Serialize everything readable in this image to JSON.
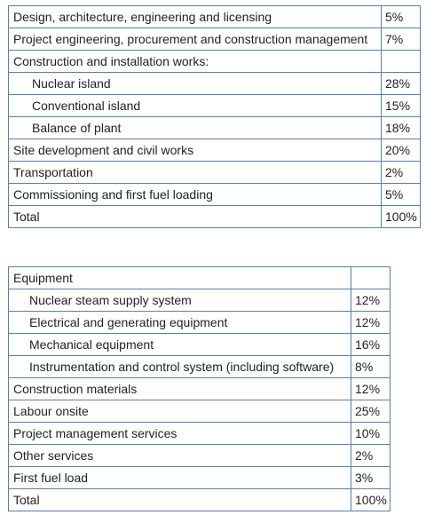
{
  "table1": {
    "rows": [
      {
        "label": "Design, architecture, engineering and licensing",
        "value": "5%",
        "indent": false
      },
      {
        "label": "Project engineering, procurement and construction management",
        "value": "7%",
        "indent": false
      },
      {
        "label": "Construction and installation works:",
        "value": "",
        "indent": false
      },
      {
        "label": "Nuclear island",
        "value": "28%",
        "indent": true
      },
      {
        "label": "Conventional island",
        "value": "15%",
        "indent": true
      },
      {
        "label": "Balance of plant",
        "value": "18%",
        "indent": true
      },
      {
        "label": "Site development and civil works",
        "value": "20%",
        "indent": false
      },
      {
        "label": "Transportation",
        "value": "2%",
        "indent": false
      },
      {
        "label": "Commissioning and first fuel loading",
        "value": "5%",
        "indent": false
      },
      {
        "label": "Total",
        "value": "100%",
        "indent": false
      }
    ]
  },
  "table2": {
    "rows": [
      {
        "label": "Equipment",
        "value": "",
        "indent": false
      },
      {
        "label": "Nuclear steam supply system",
        "value": "12%",
        "indent": true
      },
      {
        "label": "Electrical and generating equipment",
        "value": "12%",
        "indent": true
      },
      {
        "label": "Mechanical equipment",
        "value": "16%",
        "indent": true
      },
      {
        "label": "Instrumentation and control system (including software)",
        "value": "8%",
        "indent": true
      },
      {
        "label": "Construction materials",
        "value": "12%",
        "indent": false
      },
      {
        "label": "Labour onsite",
        "value": "25%",
        "indent": false
      },
      {
        "label": "Project management services",
        "value": "10%",
        "indent": false
      },
      {
        "label": "Other services",
        "value": "2%",
        "indent": false
      },
      {
        "label": "First fuel load",
        "value": "3%",
        "indent": false
      },
      {
        "label": "Total",
        "value": "100%",
        "indent": false
      }
    ]
  }
}
